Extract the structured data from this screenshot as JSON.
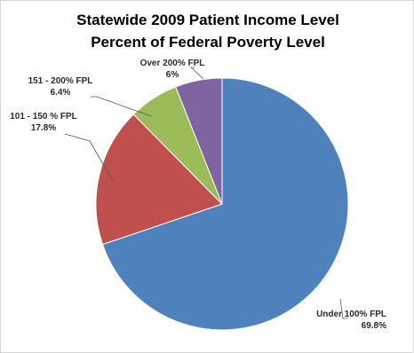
{
  "chart_data": {
    "type": "pie",
    "title": "Statewide 2009 Patient Income Level",
    "subtitle": "Percent of Federal Poverty Level",
    "slices": [
      {
        "label": "Under 100% FPL",
        "value": 69.8,
        "display": "69.8%",
        "color": "#4f81bd"
      },
      {
        "label": "101 - 150 % FPL",
        "value": 17.8,
        "display": "17.8%",
        "color": "#c0504d"
      },
      {
        "label": "151 - 200% FPL",
        "value": 6.4,
        "display": "6.4%",
        "color": "#9bbb59"
      },
      {
        "label": "Over 200% FPL",
        "value": 6.0,
        "display": "6%",
        "color": "#8064a2"
      }
    ],
    "start": "12 o'clock",
    "direction": "clockwise",
    "legend": "none",
    "label_placement": "outside with leader lines"
  }
}
